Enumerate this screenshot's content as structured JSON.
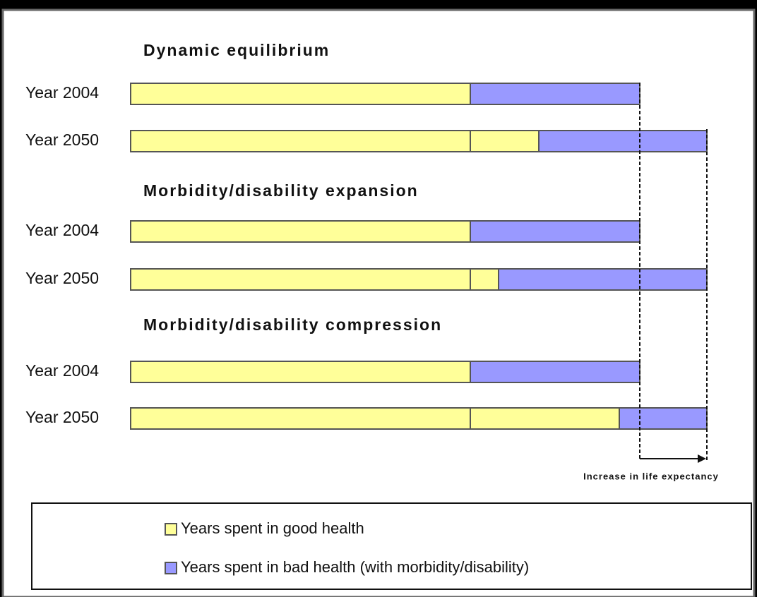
{
  "groups": [
    {
      "title": "Dynamic equilibrium",
      "rows": [
        {
          "label": "Year 2004"
        },
        {
          "label": "Year 2050"
        }
      ]
    },
    {
      "title": "Morbidity/disability expansion",
      "rows": [
        {
          "label": "Year 2004"
        },
        {
          "label": "Year 2050"
        }
      ]
    },
    {
      "title": "Morbidity/disability compression",
      "rows": [
        {
          "label": "Year 2004"
        },
        {
          "label": "Year 2050"
        }
      ]
    }
  ],
  "annotation": "Increase in life expectancy",
  "legend": [
    {
      "label": "Years spent in good health"
    },
    {
      "label": "Years spent in bad health (with morbidity/disability)"
    }
  ]
}
